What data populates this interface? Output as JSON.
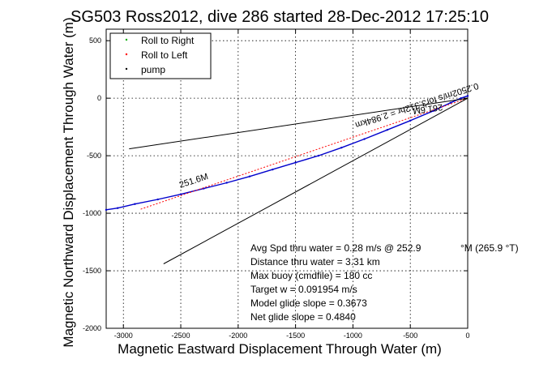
{
  "chart_data": {
    "type": "line",
    "title": "SG503 Ross2012, dive 286 started 28-Dec-2012 17:25:10",
    "xlabel": "Magnetic Eastward Displacement Through Water (m)",
    "ylabel": "Magnetic Northward Displacement Through Water (m)",
    "xlim": [
      -3150,
      0
    ],
    "ylim": [
      -2000,
      600
    ],
    "xticks": [
      -3000,
      -2500,
      -2000,
      -1500,
      -1000,
      -500,
      0
    ],
    "xtick_labels": [
      "-3000",
      "-2500",
      "-2000",
      "-1500",
      "-1000",
      "-500",
      "0"
    ],
    "yticks": [
      -2000,
      -1500,
      -1000,
      -500,
      0,
      500
    ],
    "ytick_labels": [
      "-2000",
      "-1500",
      "-1000",
      "-500",
      "0",
      "500"
    ],
    "grid": true,
    "legend_position": "top-left",
    "legend": [
      {
        "label": "Roll to Right",
        "color": "#00aa00"
      },
      {
        "label": "Roll to Left",
        "color": "#ff0000"
      },
      {
        "label": "pump",
        "color": "#000000"
      }
    ],
    "series": [
      {
        "style": "track",
        "color": "#0000cc",
        "x": [
          0,
          -60,
          -150,
          -300,
          -500,
          -700,
          -900,
          -1100,
          -1300,
          -1500,
          -1700,
          -1900,
          -2100,
          -2300,
          -2500,
          -2700,
          -2900,
          -3050,
          -3150
        ],
        "y": [
          20,
          0,
          -40,
          -110,
          -195,
          -275,
          -355,
          -430,
          -500,
          -560,
          -620,
          -680,
          -735,
          -785,
          -835,
          -880,
          -920,
          -955,
          -970
        ]
      },
      {
        "style": "planned-course",
        "color": "#ff0000",
        "x": [
          0,
          -2850
        ],
        "y": [
          0,
          -965
        ]
      },
      {
        "style": "bounds",
        "color": "#000000",
        "x": [
          0,
          -2950
        ],
        "y": [
          0,
          -440
        ]
      },
      {
        "style": "bounds",
        "color": "#000000",
        "x": [
          0,
          -2650
        ],
        "y": [
          0,
          -1440
        ]
      }
    ],
    "annotations": [
      {
        "text": "0.2502m/s for3.312hr = 2.984km",
        "x": -450,
        "y": -40,
        "rotation": 162
      },
      {
        "text": "251.6M",
        "x": -2380,
        "y": -740,
        "rotation": -18
      },
      {
        "text": "261.6M",
        "x": -350,
        "y": -70,
        "rotation": 172
      }
    ],
    "info_lines": [
      {
        "label": "Avg Spd thru water =  0.28 m/s @ 252.9",
        "suffix": "°M (265.9 °T)"
      },
      {
        "label": "Distance thru water =  3.31 km",
        "suffix": ""
      },
      {
        "label": "Max buoy (cmdfile) = 180 cc",
        "suffix": ""
      },
      {
        "label": "Target w = 0.091954 m/s",
        "suffix": ""
      },
      {
        "label": "Model glide slope = 0.3673",
        "suffix": ""
      },
      {
        "label": "Net glide slope = 0.4840",
        "suffix": ""
      }
    ]
  }
}
